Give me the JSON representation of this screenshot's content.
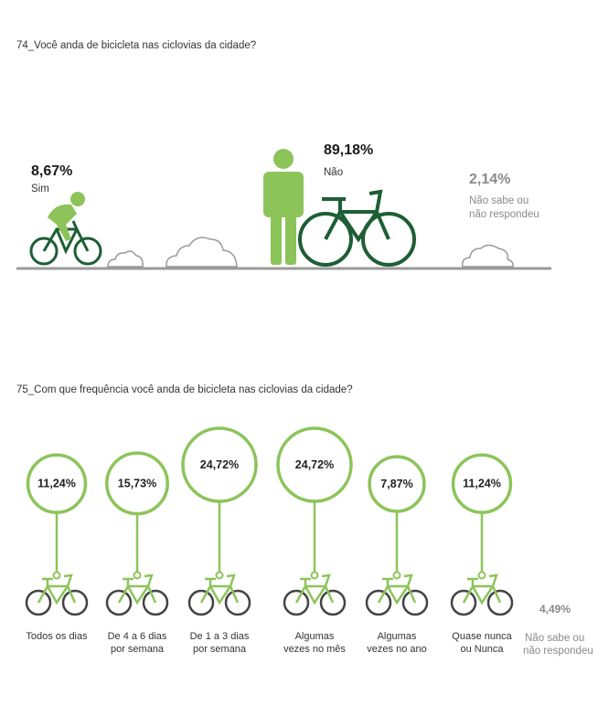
{
  "q74": {
    "title": "74_Você anda de bicicleta nas ciclovias da cidade?",
    "sim": {
      "pct": "8,67%",
      "label": "Sim"
    },
    "nao": {
      "pct": "89,18%",
      "label": "Não"
    },
    "ns": {
      "pct": "2,14%",
      "label_line1": "Não sabe ou",
      "label_line2": "não respondeu"
    }
  },
  "q75": {
    "title": "75_Com que frequência você anda de bicicleta nas ciclovias da cidade?",
    "ns": {
      "pct": "4,49%",
      "label_line1": "Não sabe ou",
      "label_line2": "não respondeu"
    }
  },
  "colors": {
    "dark_green": "#1e5e34",
    "light_green": "#8cc45a",
    "gray": "#8a8a8a"
  },
  "chart_data": [
    {
      "type": "pictogram",
      "title": "74_Você anda de bicicleta nas ciclovias da cidade?",
      "categories": [
        "Sim",
        "Não",
        "Não sabe ou não respondeu"
      ],
      "values": [
        8.67,
        89.18,
        2.14
      ],
      "unit": "%"
    },
    {
      "type": "bubble",
      "title": "75_Com que frequência você anda de bicicleta nas ciclovias da cidade?",
      "categories": [
        {
          "line1": "Todos os dias",
          "line2": ""
        },
        {
          "line1": "De 4 a 6 dias",
          "line2": "por semana"
        },
        {
          "line1": "De 1 a 3 dias",
          "line2": "por semana"
        },
        {
          "line1": "Algumas",
          "line2": "vezes no mês"
        },
        {
          "line1": "Algumas",
          "line2": "vezes no ano"
        },
        {
          "line1": "Quase nunca",
          "line2": "ou Nunca"
        },
        {
          "line1": "Não sabe ou",
          "line2": "não respondeu"
        }
      ],
      "values": [
        11.24,
        15.73,
        24.72,
        24.72,
        7.87,
        11.24,
        4.49
      ],
      "value_labels": [
        "11,24%",
        "15,73%",
        "24,72%",
        "24,72%",
        "7,87%",
        "11,24%",
        "4,49%"
      ],
      "unit": "%"
    }
  ]
}
